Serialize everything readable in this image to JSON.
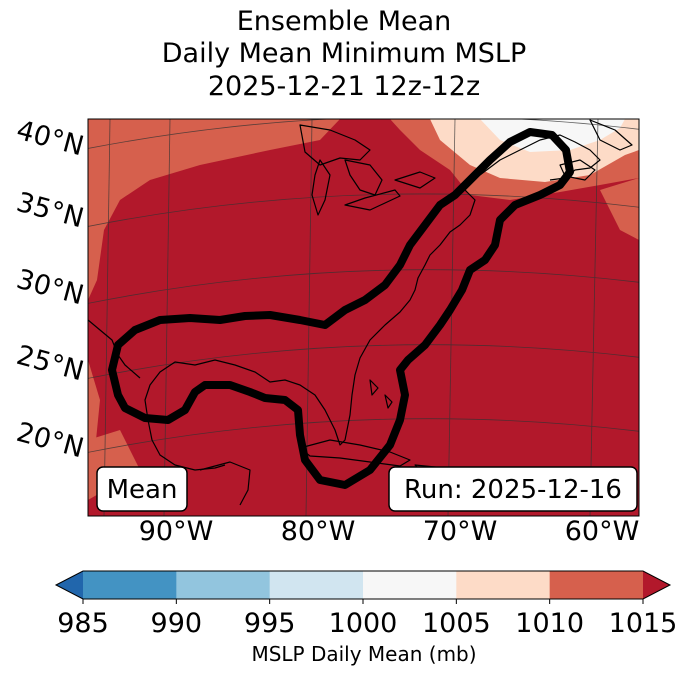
{
  "title": {
    "line1": "Ensemble Mean",
    "line2": "Daily Mean Minimum MSLP",
    "line3": "2025-12-21 12z-12z"
  },
  "map": {
    "lat_labels": [
      "40°N",
      "35°N",
      "30°N",
      "25°N",
      "20°N"
    ],
    "lon_labels": [
      "90°W",
      "80°W",
      "70°W",
      "60°W"
    ],
    "box_left": "Mean",
    "box_right": "Run: 2025-12-16",
    "contour_color": "#000000"
  },
  "colorbar": {
    "ticks": [
      "985",
      "990",
      "995",
      "1000",
      "1005",
      "1010",
      "1015"
    ],
    "label": "MSLP Daily Mean (mb)",
    "colors": [
      "#2166ac",
      "#4393c3",
      "#92c5de",
      "#d1e5f0",
      "#f7f7f7",
      "#fddbc7",
      "#d6604d",
      "#b2182b"
    ]
  },
  "chart_data": {
    "type": "heatmap",
    "title": "Ensemble Mean Daily Mean Minimum MSLP 2025-12-21 12z-12z",
    "variable": "MSLP Daily Mean (mb)",
    "levels": [
      985,
      990,
      995,
      1000,
      1005,
      1010,
      1015
    ],
    "extend": "both",
    "lon_range": [
      -96,
      -58
    ],
    "lat_range": [
      14,
      42
    ],
    "dominant_class": ">1015"
  }
}
